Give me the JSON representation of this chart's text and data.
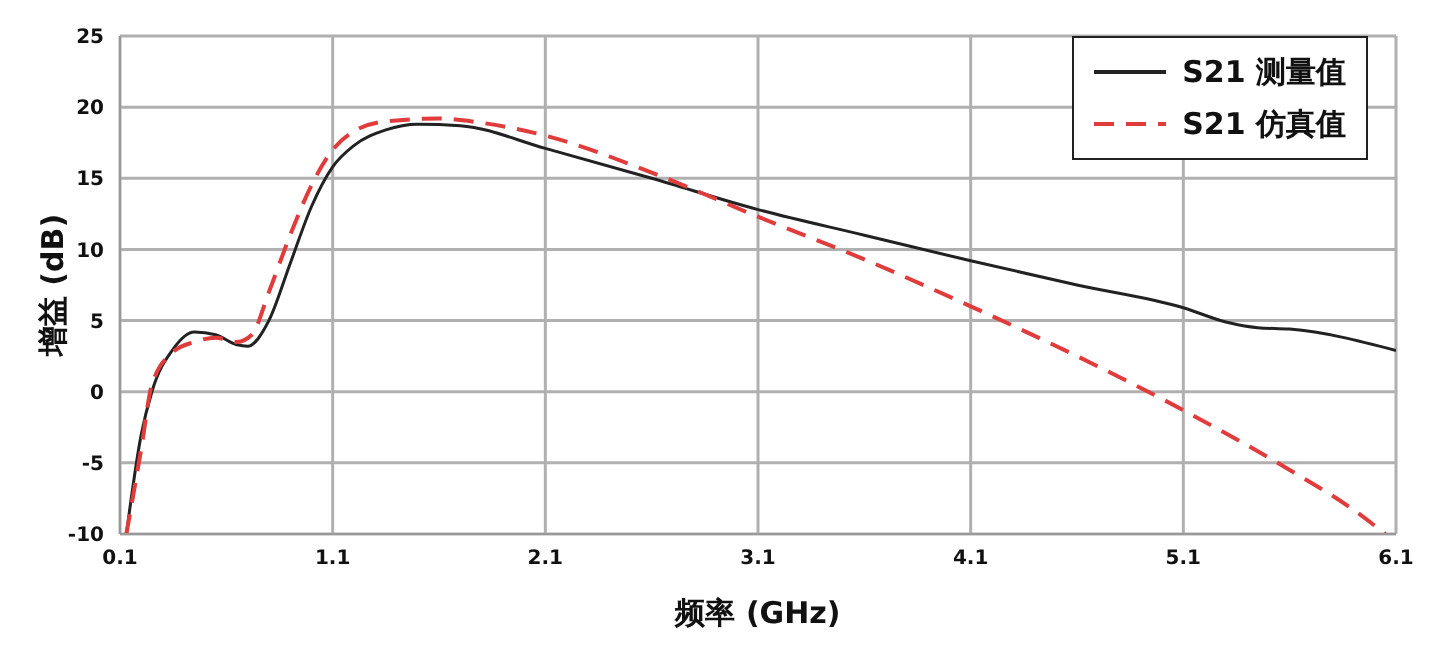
{
  "chart_data": {
    "type": "line",
    "xlabel": "频率 (GHz)",
    "ylabel": "增益 (dB)",
    "xlim": [
      0.1,
      6.1
    ],
    "xticks": [
      0.1,
      1.1,
      2.1,
      3.1,
      4.1,
      5.1,
      6.1
    ],
    "ylim": [
      -10,
      25
    ],
    "yticks": [
      -10,
      -5,
      0,
      5,
      10,
      15,
      20,
      25
    ],
    "grid": true,
    "legend": "top right",
    "marker": "none",
    "series": [
      {
        "name": "S21 测量值",
        "color": "#222222",
        "line_style": "solid",
        "x": [
          0.13,
          0.2,
          0.25,
          0.35,
          0.45,
          0.55,
          0.65,
          0.7,
          0.8,
          0.9,
          1.0,
          1.1,
          1.2,
          1.35,
          1.5,
          1.7,
          2.1,
          2.6,
          3.1,
          3.6,
          4.1,
          4.6,
          5.1,
          5.3,
          5.45,
          5.6,
          6.1
        ],
        "values": [
          -10,
          -3,
          0,
          3,
          4.2,
          4,
          3.3,
          3.2,
          5,
          9,
          13,
          15.8,
          17.3,
          18.4,
          18.8,
          18.7,
          17.1,
          15,
          12.8,
          11,
          9.2,
          7.5,
          5.9,
          4.9,
          4.5,
          4.4,
          2.9
        ]
      },
      {
        "name": "S21 仿真值",
        "color": "#e03c3c",
        "line_style": "dashed",
        "x": [
          0.13,
          0.2,
          0.25,
          0.35,
          0.45,
          0.55,
          0.65,
          0.72,
          0.8,
          0.9,
          1.0,
          1.1,
          1.2,
          1.35,
          1.6,
          1.8,
          2.1,
          2.6,
          3.1,
          3.6,
          4.1,
          4.6,
          5.1,
          5.6,
          5.9,
          6.05
        ],
        "values": [
          -10,
          -4,
          0.5,
          2.8,
          3.5,
          3.8,
          3.5,
          4,
          7,
          11,
          14.5,
          17,
          18.3,
          19,
          19.2,
          18.9,
          18,
          15.4,
          12.3,
          9.3,
          6,
          2.5,
          -1.3,
          -5.5,
          -8.3,
          -10
        ]
      }
    ]
  }
}
